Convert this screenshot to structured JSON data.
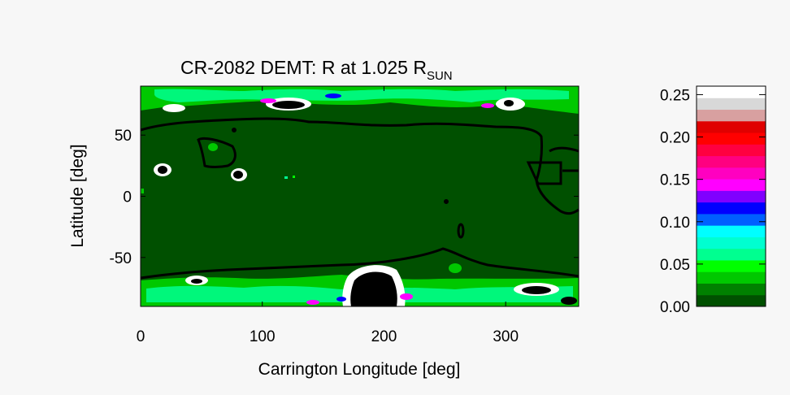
{
  "chart_data": {
    "type": "heatmap",
    "title_main": "CR-2082 DEMT: R at 1.025 R",
    "title_sub": "SUN",
    "xlabel": "Carrington Longitude [deg]",
    "ylabel": "Latitude [deg]",
    "xlim": [
      0,
      360
    ],
    "ylim": [
      -90,
      90
    ],
    "xticks": [
      0,
      100,
      200,
      300
    ],
    "yticks": [
      50,
      0,
      -50
    ],
    "colorbar": {
      "range": [
        0,
        0.26
      ],
      "ticks": [
        "0.25",
        "0.20",
        "0.15",
        "0.10",
        "0.05",
        "0.00"
      ],
      "tick_values": [
        0.25,
        0.2,
        0.15,
        0.1,
        0.05,
        0.0
      ],
      "colors": [
        "#005000",
        "#008000",
        "#00c800",
        "#00ff00",
        "#00ff90",
        "#00ffd0",
        "#00ffff",
        "#0060ff",
        "#0000ff",
        "#8000ff",
        "#ff00ff",
        "#ff00c0",
        "#ff0080",
        "#ff0040",
        "#ff0000",
        "#e00000",
        "#d8a0a0",
        "#d8d8d8",
        "#ffffff"
      ]
    },
    "background_color": "#005000",
    "contour_color": "#000000"
  }
}
